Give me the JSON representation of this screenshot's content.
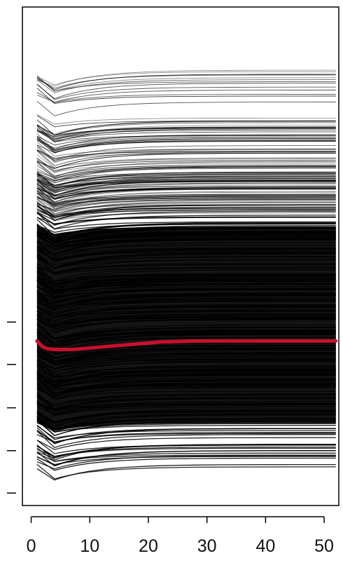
{
  "chart_data": {
    "type": "line",
    "title": "",
    "xlabel": "",
    "ylabel": "",
    "xlim": [
      -1.5,
      52.5
    ],
    "ylim": [
      0,
      100
    ],
    "x_ticks": [
      0,
      10,
      20,
      30,
      40,
      50
    ],
    "x_tick_labels": [
      "0",
      "10",
      "20",
      "30",
      "40",
      "50"
    ],
    "y_ticks": [
      2.5,
      11,
      19.6,
      28.3,
      36.8
    ],
    "y_tick_labels": [
      "",
      "",
      "",
      "",
      ""
    ],
    "grid": false,
    "legend": "none",
    "background_series": {
      "description": "many trajectories starting at x=1 and levelling off",
      "x_start": 1,
      "x_end": 52,
      "start_min": 6.5,
      "start_max": 87.5,
      "color": "#000000"
    },
    "highlight_series": {
      "x": [
        1,
        2,
        3,
        4,
        5,
        6,
        7,
        8,
        10,
        12,
        15,
        18,
        20,
        22,
        25,
        28,
        30,
        35,
        40,
        45,
        50,
        52
      ],
      "y": [
        33.0,
        31.8,
        31.4,
        31.3,
        31.3,
        31.3,
        31.3,
        31.4,
        31.6,
        31.8,
        32.1,
        32.4,
        32.6,
        32.8,
        32.9,
        33.0,
        33.0,
        33.0,
        33.0,
        33.0,
        33.0,
        33.0
      ],
      "color": "#c8102e"
    }
  }
}
